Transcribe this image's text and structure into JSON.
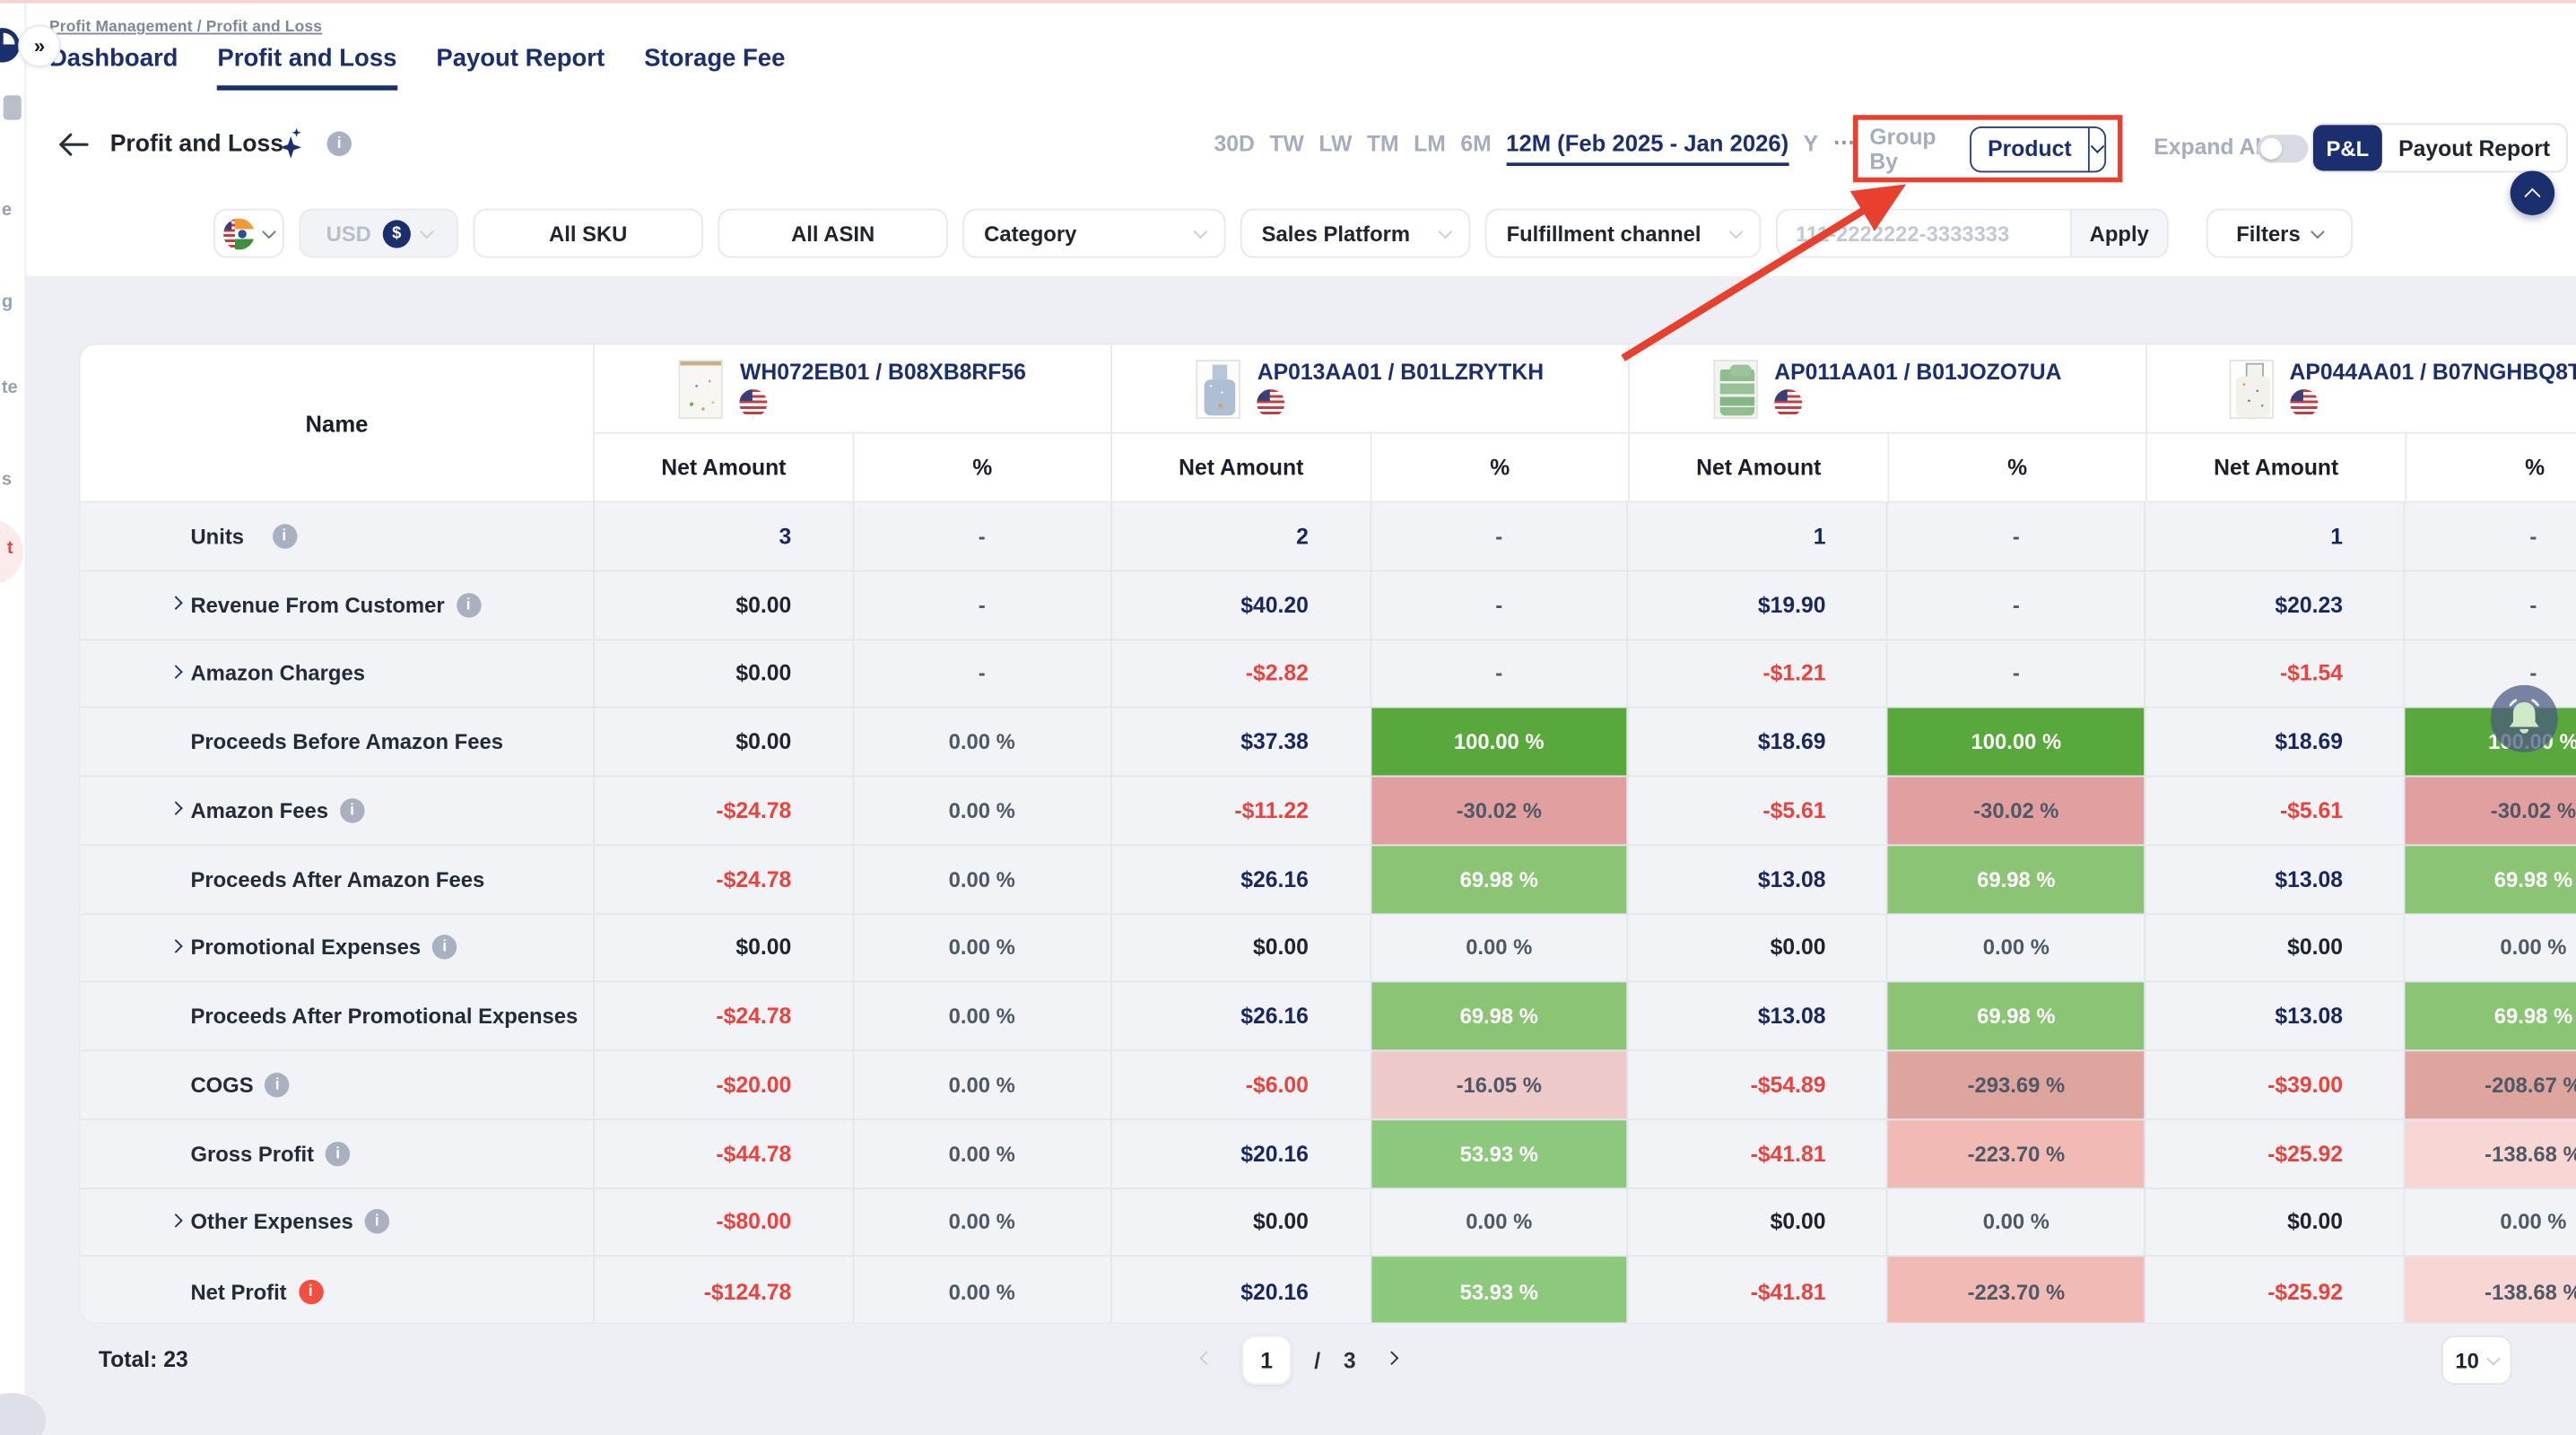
{
  "breadcrumb": "Profit Management / Profit and Loss",
  "tabs": [
    {
      "label": "Dashboard",
      "active": false
    },
    {
      "label": "Profit and Loss",
      "active": true
    },
    {
      "label": "Payout Report",
      "active": false
    },
    {
      "label": "Storage Fee",
      "active": false
    }
  ],
  "header": {
    "title": "Profit and Loss",
    "time_tokens": [
      "30D",
      "TW",
      "LW",
      "TM",
      "LM",
      "6M"
    ],
    "time_active": "12M (Feb 2025 - Jan 2026)",
    "time_after": [
      "Y"
    ],
    "time_more": "⋯",
    "group_by_label": "Group By",
    "group_by_value": "Product",
    "expand_all_label": "Expand All",
    "seg_pl": "P&L",
    "seg_payout": "Payout Report"
  },
  "filters": {
    "currency": "USD",
    "currency_symbol": "$",
    "sku": "All SKU",
    "asin": "All ASIN",
    "category": "Category",
    "sales_platform": "Sales Platform",
    "fulfillment": "Fulfillment channel",
    "order_placeholder": "111-2222222-3333333",
    "apply": "Apply",
    "filters_label": "Filters"
  },
  "colors": {
    "accent_red": "#e8402f",
    "navy": "#1b2f6e",
    "value_navy": "#19275f",
    "value_red": "#e8433d",
    "green_strong": "#58a83c",
    "green_medium": "#8cc476",
    "pink_strong": "#e19f9f",
    "pink_deep": "#dea49e",
    "pink_light": "#f8d6d3"
  },
  "table": {
    "name_header": "Name",
    "net_header": "Net Amount",
    "pct_header": "%",
    "products": [
      {
        "code": "WH072EB01 / B08XB8RF56",
        "thumb": "tapestry",
        "flag": "us-flag"
      },
      {
        "code": "AP013AA01 / B01LZRYTKH",
        "thumb": "apron-blue",
        "flag": "us-flag"
      },
      {
        "code": "AP011AA01 / B01JOZO7UA",
        "thumb": "towels",
        "flag": "us-flag"
      },
      {
        "code": "AP044AA01 / B07NGHBQ8T",
        "thumb": "apron-white",
        "flag": "us-flag"
      }
    ],
    "rows": [
      {
        "label": "Units",
        "expandable": false,
        "info": "gray",
        "cells": [
          {
            "net": "3",
            "nc": "navy",
            "pct": "-",
            "bg": "",
            "pf": "slate"
          },
          {
            "net": "2",
            "nc": "navy",
            "pct": "-",
            "bg": "",
            "pf": "slate"
          },
          {
            "net": "1",
            "nc": "navy",
            "pct": "-",
            "bg": "",
            "pf": "slate"
          },
          {
            "net": "1",
            "nc": "navy",
            "pct": "-",
            "bg": "",
            "pf": "slate"
          }
        ]
      },
      {
        "label": "Revenue From Customer",
        "expandable": true,
        "info": "gray",
        "cells": [
          {
            "net": "$0.00",
            "nc": "dark",
            "pct": "-",
            "bg": "",
            "pf": "slate"
          },
          {
            "net": "$40.20",
            "nc": "navy",
            "pct": "-",
            "bg": "",
            "pf": "slate"
          },
          {
            "net": "$19.90",
            "nc": "navy",
            "pct": "-",
            "bg": "",
            "pf": "slate"
          },
          {
            "net": "$20.23",
            "nc": "navy",
            "pct": "-",
            "bg": "",
            "pf": "slate"
          }
        ]
      },
      {
        "label": "Amazon Charges",
        "expandable": true,
        "info": null,
        "cells": [
          {
            "net": "$0.00",
            "nc": "dark",
            "pct": "-",
            "bg": "",
            "pf": "slate"
          },
          {
            "net": "-$2.82",
            "nc": "red",
            "pct": "-",
            "bg": "",
            "pf": "slate"
          },
          {
            "net": "-$1.21",
            "nc": "red",
            "pct": "-",
            "bg": "",
            "pf": "slate"
          },
          {
            "net": "-$1.54",
            "nc": "red",
            "pct": "-",
            "bg": "",
            "pf": "slate"
          }
        ]
      },
      {
        "label": "Proceeds Before Amazon Fees",
        "expandable": false,
        "info": null,
        "cells": [
          {
            "net": "$0.00",
            "nc": "dark",
            "pct": "0.00 %",
            "bg": "",
            "pf": "slate"
          },
          {
            "net": "$37.38",
            "nc": "navy",
            "pct": "100.00 %",
            "bg": "#58a83c",
            "pf": "white"
          },
          {
            "net": "$18.69",
            "nc": "navy",
            "pct": "100.00 %",
            "bg": "#58a83c",
            "pf": "white"
          },
          {
            "net": "$18.69",
            "nc": "navy",
            "pct": "100.00 %",
            "bg": "#58a83c",
            "pf": "white"
          }
        ]
      },
      {
        "label": "Amazon Fees",
        "expandable": true,
        "info": "gray",
        "cells": [
          {
            "net": "-$24.78",
            "nc": "red",
            "pct": "0.00 %",
            "bg": "",
            "pf": "slate"
          },
          {
            "net": "-$11.22",
            "nc": "red",
            "pct": "-30.02 %",
            "bg": "#e19f9f",
            "pf": "slate"
          },
          {
            "net": "-$5.61",
            "nc": "red",
            "pct": "-30.02 %",
            "bg": "#e19f9f",
            "pf": "slate"
          },
          {
            "net": "-$5.61",
            "nc": "red",
            "pct": "-30.02 %",
            "bg": "#e19f9f",
            "pf": "slate"
          }
        ]
      },
      {
        "label": "Proceeds After Amazon Fees",
        "expandable": false,
        "info": null,
        "cells": [
          {
            "net": "-$24.78",
            "nc": "red",
            "pct": "0.00 %",
            "bg": "",
            "pf": "slate"
          },
          {
            "net": "$26.16",
            "nc": "navy",
            "pct": "69.98 %",
            "bg": "#8cc476",
            "pf": "white"
          },
          {
            "net": "$13.08",
            "nc": "navy",
            "pct": "69.98 %",
            "bg": "#8cc476",
            "pf": "white"
          },
          {
            "net": "$13.08",
            "nc": "navy",
            "pct": "69.98 %",
            "bg": "#8cc476",
            "pf": "white"
          }
        ]
      },
      {
        "label": "Promotional Expenses",
        "expandable": true,
        "info": "gray",
        "cells": [
          {
            "net": "$0.00",
            "nc": "dark",
            "pct": "0.00 %",
            "bg": "",
            "pf": "slate"
          },
          {
            "net": "$0.00",
            "nc": "dark",
            "pct": "0.00 %",
            "bg": "",
            "pf": "slate"
          },
          {
            "net": "$0.00",
            "nc": "dark",
            "pct": "0.00 %",
            "bg": "",
            "pf": "slate"
          },
          {
            "net": "$0.00",
            "nc": "dark",
            "pct": "0.00 %",
            "bg": "",
            "pf": "slate"
          }
        ]
      },
      {
        "label": "Proceeds After Promotional Expenses",
        "expandable": false,
        "info": null,
        "cells": [
          {
            "net": "-$24.78",
            "nc": "red",
            "pct": "0.00 %",
            "bg": "",
            "pf": "slate"
          },
          {
            "net": "$26.16",
            "nc": "navy",
            "pct": "69.98 %",
            "bg": "#8cc476",
            "pf": "white"
          },
          {
            "net": "$13.08",
            "nc": "navy",
            "pct": "69.98 %",
            "bg": "#8cc476",
            "pf": "white"
          },
          {
            "net": "$13.08",
            "nc": "navy",
            "pct": "69.98 %",
            "bg": "#8cc476",
            "pf": "white"
          }
        ]
      },
      {
        "label": "COGS",
        "expandable": false,
        "info": "gray",
        "cells": [
          {
            "net": "-$20.00",
            "nc": "red",
            "pct": "0.00 %",
            "bg": "",
            "pf": "slate"
          },
          {
            "net": "-$6.00",
            "nc": "red",
            "pct": "-16.05 %",
            "bg": "#eec9c9",
            "pf": "slate"
          },
          {
            "net": "-$54.89",
            "nc": "red",
            "pct": "-293.69 %",
            "bg": "#dea49e",
            "pf": "slate"
          },
          {
            "net": "-$39.00",
            "nc": "red",
            "pct": "-208.67 %",
            "bg": "#dea49e",
            "pf": "slate"
          }
        ]
      },
      {
        "label": "Gross Profit",
        "expandable": false,
        "info": "gray",
        "cells": [
          {
            "net": "-$44.78",
            "nc": "red",
            "pct": "0.00 %",
            "bg": "",
            "pf": "slate"
          },
          {
            "net": "$20.16",
            "nc": "navy",
            "pct": "53.93 %",
            "bg": "#8cc97c",
            "pf": "white"
          },
          {
            "net": "-$41.81",
            "nc": "red",
            "pct": "-223.70 %",
            "bg": "#f2bab4",
            "pf": "slate"
          },
          {
            "net": "-$25.92",
            "nc": "red",
            "pct": "-138.68 %",
            "bg": "#f8d6d3",
            "pf": "slate"
          }
        ]
      },
      {
        "label": "Other Expenses",
        "expandable": true,
        "info": "gray",
        "cells": [
          {
            "net": "-$80.00",
            "nc": "red",
            "pct": "0.00 %",
            "bg": "",
            "pf": "slate"
          },
          {
            "net": "$0.00",
            "nc": "dark",
            "pct": "0.00 %",
            "bg": "",
            "pf": "slate"
          },
          {
            "net": "$0.00",
            "nc": "dark",
            "pct": "0.00 %",
            "bg": "",
            "pf": "slate"
          },
          {
            "net": "$0.00",
            "nc": "dark",
            "pct": "0.00 %",
            "bg": "",
            "pf": "slate"
          }
        ]
      },
      {
        "label": "Net Profit",
        "expandable": false,
        "info": "red",
        "cells": [
          {
            "net": "-$124.78",
            "nc": "red",
            "pct": "0.00 %",
            "bg": "",
            "pf": "slate"
          },
          {
            "net": "$20.16",
            "nc": "navy",
            "pct": "53.93 %",
            "bg": "#8cc97c",
            "pf": "white"
          },
          {
            "net": "-$41.81",
            "nc": "red",
            "pct": "-223.70 %",
            "bg": "#f2bab4",
            "pf": "slate"
          },
          {
            "net": "-$25.92",
            "nc": "red",
            "pct": "-138.68 %",
            "bg": "#f8d6d3",
            "pf": "slate"
          }
        ]
      }
    ]
  },
  "footer": {
    "total": "Total: 23",
    "page": "1",
    "slash": "/",
    "pages": "3",
    "page_size": "10"
  },
  "sidebar": {
    "expand_icon": "»",
    "fragments": [
      "e",
      "g",
      "te",
      "s"
    ],
    "highlight_fragment": "t"
  }
}
